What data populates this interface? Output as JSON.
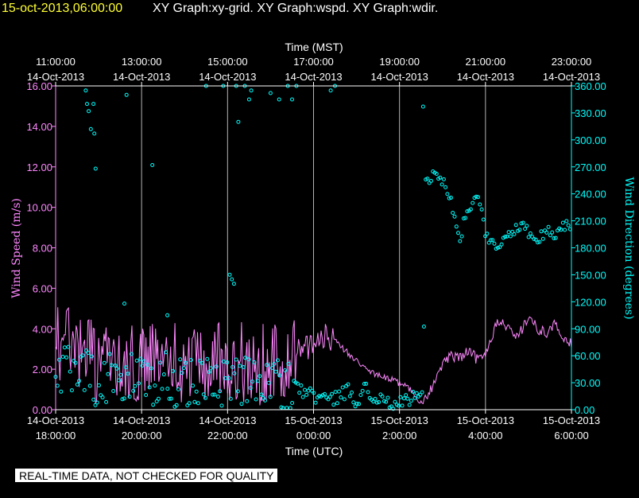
{
  "header": {
    "timestamp": "15-oct-2013,06:00:00",
    "graphs": "XY Graph:xy-grid.  XY Graph:wspd.  XY Graph:wdir."
  },
  "footer": {
    "quality_note": "REAL-TIME DATA, NOT CHECKED FOR QUALITY"
  },
  "colors": {
    "background": "#000000",
    "axis": "#ffffff",
    "grid": "#b4b4b4",
    "wspd": "#ff88ff",
    "wdir": "#00ffff",
    "header_date": "#ffff33"
  },
  "chart_data": {
    "type": "line",
    "title": "15-oct-2013,06:00:00  XY Graph:xy-grid.  XY Graph:wspd.  XY Graph:wdir.",
    "x_range_hours": [
      0,
      12
    ],
    "top_axis": {
      "label": "Time (MST)",
      "ticks": [
        {
          "hour": 0,
          "time": "11:00:00",
          "date": "14-Oct-2013"
        },
        {
          "hour": 2,
          "time": "13:00:00",
          "date": "14-Oct-2013"
        },
        {
          "hour": 4,
          "time": "15:00:00",
          "date": "14-Oct-2013"
        },
        {
          "hour": 6,
          "time": "17:00:00",
          "date": "14-Oct-2013"
        },
        {
          "hour": 8,
          "time": "19:00:00",
          "date": "14-Oct-2013"
        },
        {
          "hour": 10,
          "time": "21:00:00",
          "date": "14-Oct-2013"
        },
        {
          "hour": 12,
          "time": "23:00:00",
          "date": "14-Oct-2013"
        }
      ]
    },
    "bottom_axis": {
      "label": "Time (UTC)",
      "ticks": [
        {
          "hour": 0,
          "date": "14-Oct-2013",
          "time": "18:00:00"
        },
        {
          "hour": 2,
          "date": "14-Oct-2013",
          "time": "20:00:00"
        },
        {
          "hour": 4,
          "date": "14-Oct-2013",
          "time": "22:00:00"
        },
        {
          "hour": 6,
          "date": "15-Oct-2013",
          "time": "0:00:00"
        },
        {
          "hour": 8,
          "date": "15-Oct-2013",
          "time": "2:00:00"
        },
        {
          "hour": 10,
          "date": "15-Oct-2013",
          "time": "4:00:00"
        },
        {
          "hour": 12,
          "date": "15-Oct-2013",
          "time": "6:00:00"
        }
      ]
    },
    "left_axis": {
      "label": "Wind Speed (m/s)",
      "ylim": [
        0,
        16
      ],
      "ticks": [
        "0.00",
        "2.00",
        "4.00",
        "6.00",
        "8.00",
        "10.00",
        "12.00",
        "14.00",
        "16.00"
      ]
    },
    "right_axis": {
      "label": "Wind Direction (degrees)",
      "ylim": [
        0,
        360
      ],
      "ticks": [
        "0.00",
        "30.00",
        "60.00",
        "90.00",
        "120.00",
        "150.00",
        "180.00",
        "210.00",
        "240.00",
        "270.00",
        "300.00",
        "330.00",
        "360.00"
      ]
    },
    "series": [
      {
        "name": "Wind Speed",
        "style": "line",
        "axis": "left",
        "anchors": [
          {
            "h": 0.0,
            "v": 3.0
          },
          {
            "h": 0.2,
            "v": 3.4
          },
          {
            "h": 0.5,
            "v": 2.5
          },
          {
            "h": 0.7,
            "v": 3.3
          },
          {
            "h": 0.9,
            "v": 2.3
          },
          {
            "h": 1.2,
            "v": 2.6
          },
          {
            "h": 1.5,
            "v": 2.4
          },
          {
            "h": 1.8,
            "v": 2.2
          },
          {
            "h": 2.0,
            "v": 2.4
          },
          {
            "h": 2.3,
            "v": 2.7
          },
          {
            "h": 2.6,
            "v": 2.6
          },
          {
            "h": 2.9,
            "v": 2.3
          },
          {
            "h": 3.2,
            "v": 2.2
          },
          {
            "h": 3.5,
            "v": 2.3
          },
          {
            "h": 3.8,
            "v": 2.8
          },
          {
            "h": 4.1,
            "v": 2.4
          },
          {
            "h": 4.4,
            "v": 2.3
          },
          {
            "h": 4.7,
            "v": 2.2
          },
          {
            "h": 5.0,
            "v": 2.3
          },
          {
            "h": 5.3,
            "v": 2.2
          },
          {
            "h": 5.6,
            "v": 3.0
          },
          {
            "h": 5.8,
            "v": 2.9
          },
          {
            "h": 6.0,
            "v": 3.2
          },
          {
            "h": 6.2,
            "v": 3.5
          },
          {
            "h": 6.4,
            "v": 3.6
          },
          {
            "h": 6.6,
            "v": 3.2
          },
          {
            "h": 6.8,
            "v": 2.8
          },
          {
            "h": 7.0,
            "v": 2.4
          },
          {
            "h": 7.2,
            "v": 2.0
          },
          {
            "h": 7.4,
            "v": 1.8
          },
          {
            "h": 7.6,
            "v": 1.6
          },
          {
            "h": 7.8,
            "v": 1.5
          },
          {
            "h": 8.0,
            "v": 1.3
          },
          {
            "h": 8.2,
            "v": 1.1
          },
          {
            "h": 8.4,
            "v": 0.6
          },
          {
            "h": 8.5,
            "v": 0.3
          },
          {
            "h": 8.6,
            "v": 0.5
          },
          {
            "h": 8.7,
            "v": 0.9
          },
          {
            "h": 8.85,
            "v": 1.6
          },
          {
            "h": 9.0,
            "v": 2.3
          },
          {
            "h": 9.2,
            "v": 2.7
          },
          {
            "h": 9.4,
            "v": 2.5
          },
          {
            "h": 9.6,
            "v": 2.9
          },
          {
            "h": 9.8,
            "v": 2.5
          },
          {
            "h": 10.0,
            "v": 2.8
          },
          {
            "h": 10.15,
            "v": 3.7
          },
          {
            "h": 10.3,
            "v": 4.3
          },
          {
            "h": 10.5,
            "v": 4.1
          },
          {
            "h": 10.7,
            "v": 3.5
          },
          {
            "h": 10.9,
            "v": 4.2
          },
          {
            "h": 11.05,
            "v": 4.5
          },
          {
            "h": 11.2,
            "v": 4.0
          },
          {
            "h": 11.4,
            "v": 3.8
          },
          {
            "h": 11.6,
            "v": 4.2
          },
          {
            "h": 11.8,
            "v": 3.6
          },
          {
            "h": 12.0,
            "v": 3.2
          }
        ]
      },
      {
        "name": "Wind Direction",
        "style": "scatter",
        "axis": "right",
        "anchors": [
          {
            "h": 0.0,
            "v": 40
          },
          {
            "h": 0.25,
            "v": 45
          },
          {
            "h": 0.5,
            "v": 35
          },
          {
            "h": 0.75,
            "v": 40
          },
          {
            "h": 1.0,
            "v": 30
          },
          {
            "h": 1.3,
            "v": 35
          },
          {
            "h": 1.6,
            "v": 30
          },
          {
            "h": 1.9,
            "v": 40
          },
          {
            "h": 2.2,
            "v": 30
          },
          {
            "h": 2.5,
            "v": 38
          },
          {
            "h": 2.8,
            "v": 30
          },
          {
            "h": 3.1,
            "v": 30
          },
          {
            "h": 3.4,
            "v": 35
          },
          {
            "h": 3.7,
            "v": 28
          },
          {
            "h": 4.0,
            "v": 30
          },
          {
            "h": 4.3,
            "v": 35
          },
          {
            "h": 4.6,
            "v": 25
          },
          {
            "h": 4.9,
            "v": 35
          },
          {
            "h": 5.2,
            "v": 30
          },
          {
            "h": 5.5,
            "v": 25
          },
          {
            "h": 5.8,
            "v": 20
          },
          {
            "h": 6.0,
            "v": 15
          },
          {
            "h": 6.2,
            "v": 12
          },
          {
            "h": 6.4,
            "v": 10
          },
          {
            "h": 6.6,
            "v": 14
          },
          {
            "h": 6.8,
            "v": 22
          },
          {
            "h": 7.0,
            "v": 10
          },
          {
            "h": 7.2,
            "v": 25
          },
          {
            "h": 7.4,
            "v": 15
          },
          {
            "h": 7.6,
            "v": 8
          },
          {
            "h": 7.8,
            "v": 5
          },
          {
            "h": 8.0,
            "v": 8
          },
          {
            "h": 8.2,
            "v": 12
          },
          {
            "h": 8.4,
            "v": 18
          },
          {
            "h": 8.55,
            "v": 15
          },
          {
            "h": 8.6,
            "v": 250
          },
          {
            "h": 8.8,
            "v": 265
          },
          {
            "h": 9.0,
            "v": 255
          },
          {
            "h": 9.1,
            "v": 240
          },
          {
            "h": 9.2,
            "v": 230
          },
          {
            "h": 9.3,
            "v": 205
          },
          {
            "h": 9.4,
            "v": 185
          },
          {
            "h": 9.5,
            "v": 210
          },
          {
            "h": 9.6,
            "v": 220
          },
          {
            "h": 9.8,
            "v": 235
          },
          {
            "h": 9.9,
            "v": 225
          },
          {
            "h": 10.0,
            "v": 195
          },
          {
            "h": 10.1,
            "v": 188
          },
          {
            "h": 10.3,
            "v": 180
          },
          {
            "h": 10.5,
            "v": 195
          },
          {
            "h": 10.7,
            "v": 200
          },
          {
            "h": 10.9,
            "v": 205
          },
          {
            "h": 11.0,
            "v": 195
          },
          {
            "h": 11.2,
            "v": 185
          },
          {
            "h": 11.4,
            "v": 200
          },
          {
            "h": 11.6,
            "v": 195
          },
          {
            "h": 11.8,
            "v": 205
          },
          {
            "h": 12.0,
            "v": 203
          }
        ],
        "outliers": [
          {
            "h": 0.7,
            "v": 355
          },
          {
            "h": 0.73,
            "v": 340
          },
          {
            "h": 0.77,
            "v": 332
          },
          {
            "h": 0.82,
            "v": 312
          },
          {
            "h": 0.88,
            "v": 340
          },
          {
            "h": 0.9,
            "v": 307
          },
          {
            "h": 0.93,
            "v": 268
          },
          {
            "h": 1.6,
            "v": 118
          },
          {
            "h": 1.65,
            "v": 350
          },
          {
            "h": 2.25,
            "v": 272
          },
          {
            "h": 2.6,
            "v": 105
          },
          {
            "h": 3.5,
            "v": 360
          },
          {
            "h": 3.9,
            "v": 360
          },
          {
            "h": 4.05,
            "v": 150
          },
          {
            "h": 4.1,
            "v": 145
          },
          {
            "h": 4.15,
            "v": 140
          },
          {
            "h": 4.2,
            "v": 360
          },
          {
            "h": 4.25,
            "v": 320
          },
          {
            "h": 4.4,
            "v": 360
          },
          {
            "h": 4.5,
            "v": 345
          },
          {
            "h": 4.55,
            "v": 355
          },
          {
            "h": 5.0,
            "v": 352
          },
          {
            "h": 5.2,
            "v": 345
          },
          {
            "h": 5.4,
            "v": 360
          },
          {
            "h": 5.5,
            "v": 345
          },
          {
            "h": 5.6,
            "v": 360
          },
          {
            "h": 6.4,
            "v": 355
          },
          {
            "h": 6.5,
            "v": 360
          },
          {
            "h": 8.55,
            "v": 337
          }
        ]
      }
    ]
  }
}
